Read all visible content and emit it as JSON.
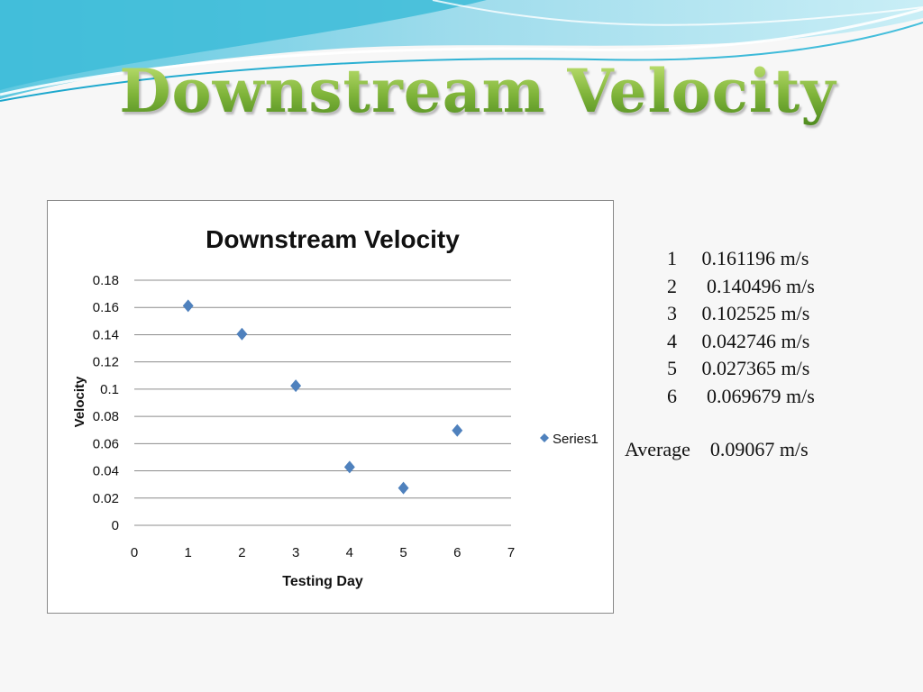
{
  "slide": {
    "title": "Downstream Velocity"
  },
  "colors": {
    "title_green": "#6aa22e",
    "wave_blue": "#2fb4d4",
    "marker": "#4f81bd",
    "gridline": "#8c8c8c"
  },
  "chart_data": {
    "type": "scatter",
    "title": "Downstream Velocity",
    "xlabel": "Testing Day",
    "ylabel": "Velocity",
    "xlim": [
      0,
      7
    ],
    "ylim": [
      0,
      0.18
    ],
    "x_ticks": [
      "0",
      "1",
      "2",
      "3",
      "4",
      "5",
      "6",
      "7"
    ],
    "y_ticks": [
      "0",
      "0.02",
      "0.04",
      "0.06",
      "0.08",
      "0.1",
      "0.12",
      "0.14",
      "0.16",
      "0.18"
    ],
    "grid": true,
    "legend_position": "right",
    "marker": "diamond",
    "series": [
      {
        "name": "Series1",
        "x": [
          1,
          2,
          3,
          4,
          5,
          6
        ],
        "y": [
          0.161196,
          0.140496,
          0.102525,
          0.042746,
          0.027365,
          0.069679
        ]
      }
    ]
  },
  "values_list": [
    {
      "day": "1",
      "value": "0.161196 m/s"
    },
    {
      "day": "2",
      "value": " 0.140496 m/s"
    },
    {
      "day": "3",
      "value": "0.102525 m/s"
    },
    {
      "day": "4",
      "value": "0.042746 m/s"
    },
    {
      "day": "5",
      "value": "0.027365 m/s"
    },
    {
      "day": "6",
      "value": " 0.069679 m/s"
    }
  ],
  "average": {
    "label": "Average",
    "value": "0.09067 m/s"
  }
}
